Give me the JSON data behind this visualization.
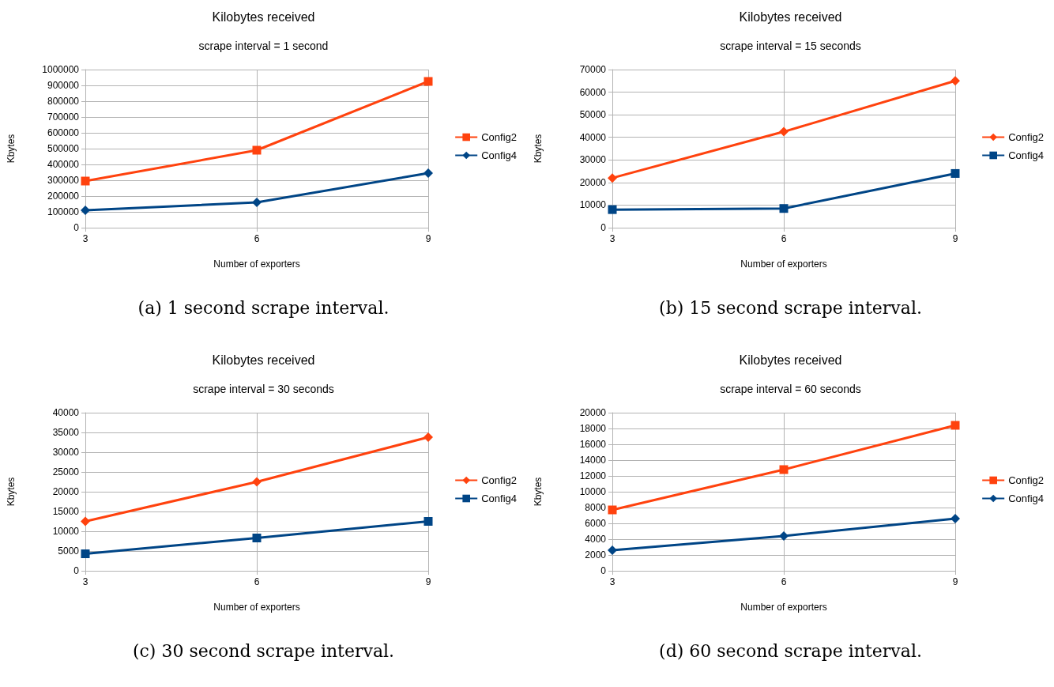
{
  "chart_data": [
    {
      "type": "line",
      "title": "Kilobytes received",
      "subtitle": "scrape interval = 1 second",
      "xlabel": "Number of exporters",
      "ylabel": "Kbytes",
      "x": [
        3,
        6,
        9
      ],
      "xlim": [
        3,
        9
      ],
      "xticks": [
        3,
        6,
        9
      ],
      "ylim": [
        0,
        1000000
      ],
      "yticks": [
        0,
        100000,
        200000,
        300000,
        400000,
        500000,
        600000,
        700000,
        800000,
        900000,
        1000000
      ],
      "grid": true,
      "legend": "right",
      "annotations": [
        "(a) 1 second scrape interval."
      ],
      "series": [
        {
          "name": "Config2",
          "color": "#ff420e",
          "marker": "square",
          "values": [
            295000,
            490000,
            925000
          ]
        },
        {
          "name": "Config4",
          "color": "#004586",
          "marker": "diamond",
          "values": [
            110000,
            160000,
            345000
          ]
        }
      ]
    },
    {
      "type": "line",
      "title": "Kilobytes received",
      "subtitle": "scrape interval = 15 seconds",
      "xlabel": "Number of exporters",
      "ylabel": "Kbytes",
      "x": [
        3,
        6,
        9
      ],
      "xlim": [
        3,
        9
      ],
      "xticks": [
        3,
        6,
        9
      ],
      "ylim": [
        0,
        70000
      ],
      "yticks": [
        0,
        10000,
        20000,
        30000,
        40000,
        50000,
        60000,
        70000
      ],
      "grid": true,
      "legend": "right",
      "annotations": [
        "(b) 15 second scrape interval."
      ],
      "series": [
        {
          "name": "Config2",
          "color": "#ff420e",
          "marker": "diamond",
          "values": [
            22000,
            42500,
            65000
          ]
        },
        {
          "name": "Config4",
          "color": "#004586",
          "marker": "square",
          "values": [
            8000,
            8500,
            24000
          ]
        }
      ]
    },
    {
      "type": "line",
      "title": "Kilobytes received",
      "subtitle": "scrape interval = 30 seconds",
      "xlabel": "Number of exporters",
      "ylabel": "Kbytes",
      "x": [
        3,
        6,
        9
      ],
      "xlim": [
        3,
        9
      ],
      "xticks": [
        3,
        6,
        9
      ],
      "ylim": [
        0,
        40000
      ],
      "yticks": [
        0,
        5000,
        10000,
        15000,
        20000,
        25000,
        30000,
        35000,
        40000
      ],
      "grid": true,
      "legend": "right",
      "annotations": [
        "(c) 30 second scrape interval."
      ],
      "series": [
        {
          "name": "Config2",
          "color": "#ff420e",
          "marker": "diamond",
          "values": [
            12500,
            22500,
            33800
          ]
        },
        {
          "name": "Config4",
          "color": "#004586",
          "marker": "square",
          "values": [
            4300,
            8300,
            12500
          ]
        }
      ]
    },
    {
      "type": "line",
      "title": "Kilobytes received",
      "subtitle": "scrape interval = 60 seconds",
      "xlabel": "Number of exporters",
      "ylabel": "Kbytes",
      "x": [
        3,
        6,
        9
      ],
      "xlim": [
        3,
        9
      ],
      "xticks": [
        3,
        6,
        9
      ],
      "ylim": [
        0,
        20000
      ],
      "yticks": [
        0,
        2000,
        4000,
        6000,
        8000,
        10000,
        12000,
        14000,
        16000,
        18000,
        20000
      ],
      "grid": true,
      "legend": "right",
      "annotations": [
        "(d) 60 second scrape interval."
      ],
      "series": [
        {
          "name": "Config2",
          "color": "#ff420e",
          "marker": "square",
          "values": [
            7700,
            12800,
            18400
          ]
        },
        {
          "name": "Config4",
          "color": "#004586",
          "marker": "diamond",
          "values": [
            2600,
            4400,
            6600
          ]
        }
      ]
    }
  ]
}
